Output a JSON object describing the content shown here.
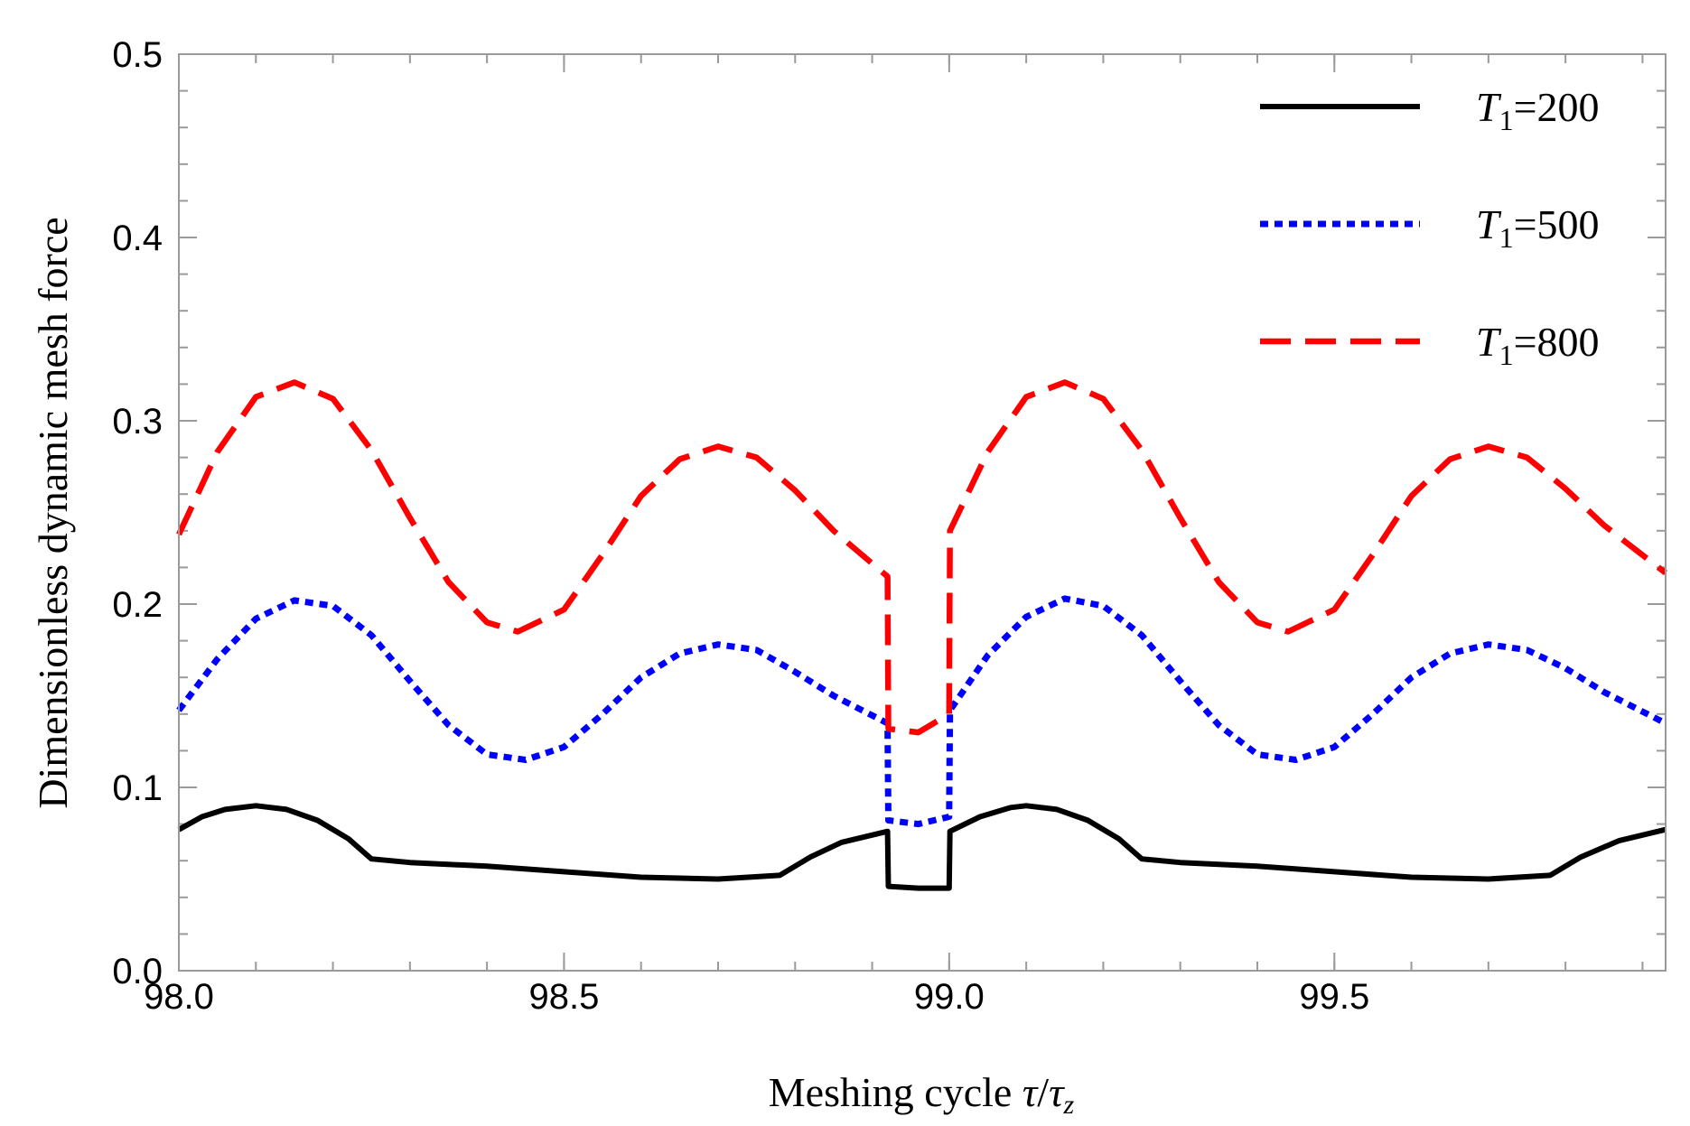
{
  "chart_data": {
    "type": "line",
    "title": "",
    "xlabel": "Meshing cycle τ/τz",
    "xlabel_parts": {
      "prefix": "Meshing cycle ",
      "tau": "τ",
      "slash": "/",
      "tau_z": "τ",
      "sub_z": "z"
    },
    "ylabel": "Dimensionless dynamic mesh force",
    "xlim": [
      98.0,
      99.93
    ],
    "ylim": [
      0.0,
      0.5
    ],
    "grid": false,
    "legend_position": "top-right",
    "x_major_ticks": [
      98.0,
      98.5,
      99.0,
      99.5
    ],
    "x_tick_labels": [
      "98.0",
      "98.5",
      "99.0",
      "99.5"
    ],
    "x_minor_step": 0.1,
    "y_major_ticks": [
      0.0,
      0.1,
      0.2,
      0.3,
      0.4,
      0.5
    ],
    "y_tick_labels": [
      "0.0",
      "0.1",
      "0.2",
      "0.3",
      "0.4",
      "0.5"
    ],
    "y_minor_step": 0.02,
    "series": [
      {
        "name": "T1=200",
        "legend": {
          "T": "T",
          "sub": "1",
          "value": "=200"
        },
        "color": "#000000",
        "style": "solid",
        "points": [
          [
            98.0,
            0.077
          ],
          [
            98.03,
            0.084
          ],
          [
            98.06,
            0.088
          ],
          [
            98.1,
            0.09
          ],
          [
            98.14,
            0.088
          ],
          [
            98.18,
            0.082
          ],
          [
            98.22,
            0.072
          ],
          [
            98.25,
            0.061
          ],
          [
            98.3,
            0.059
          ],
          [
            98.4,
            0.057
          ],
          [
            98.5,
            0.054
          ],
          [
            98.6,
            0.051
          ],
          [
            98.7,
            0.05
          ],
          [
            98.78,
            0.052
          ],
          [
            98.82,
            0.062
          ],
          [
            98.86,
            0.07
          ],
          [
            98.92,
            0.076
          ],
          [
            98.921,
            0.046
          ],
          [
            98.96,
            0.045
          ],
          [
            99.0,
            0.045
          ],
          [
            99.001,
            0.076
          ],
          [
            99.04,
            0.084
          ],
          [
            99.08,
            0.089
          ],
          [
            99.1,
            0.09
          ],
          [
            99.14,
            0.088
          ],
          [
            99.18,
            0.082
          ],
          [
            99.22,
            0.072
          ],
          [
            99.25,
            0.061
          ],
          [
            99.3,
            0.059
          ],
          [
            99.4,
            0.057
          ],
          [
            99.5,
            0.054
          ],
          [
            99.6,
            0.051
          ],
          [
            99.7,
            0.05
          ],
          [
            99.78,
            0.052
          ],
          [
            99.82,
            0.062
          ],
          [
            99.87,
            0.071
          ],
          [
            99.93,
            0.077
          ]
        ]
      },
      {
        "name": "T1=500",
        "legend": {
          "T": "T",
          "sub": "1",
          "value": "=500"
        },
        "color": "#0000ff",
        "style": "dotted",
        "points": [
          [
            98.0,
            0.142
          ],
          [
            98.05,
            0.17
          ],
          [
            98.1,
            0.192
          ],
          [
            98.15,
            0.202
          ],
          [
            98.2,
            0.199
          ],
          [
            98.25,
            0.183
          ],
          [
            98.3,
            0.158
          ],
          [
            98.35,
            0.134
          ],
          [
            98.4,
            0.118
          ],
          [
            98.45,
            0.115
          ],
          [
            98.5,
            0.122
          ],
          [
            98.55,
            0.14
          ],
          [
            98.6,
            0.16
          ],
          [
            98.65,
            0.173
          ],
          [
            98.7,
            0.178
          ],
          [
            98.75,
            0.175
          ],
          [
            98.8,
            0.163
          ],
          [
            98.85,
            0.15
          ],
          [
            98.92,
            0.135
          ],
          [
            98.921,
            0.082
          ],
          [
            98.96,
            0.08
          ],
          [
            99.0,
            0.084
          ],
          [
            99.001,
            0.142
          ],
          [
            99.05,
            0.172
          ],
          [
            99.1,
            0.193
          ],
          [
            99.15,
            0.203
          ],
          [
            99.2,
            0.199
          ],
          [
            99.25,
            0.183
          ],
          [
            99.3,
            0.158
          ],
          [
            99.35,
            0.134
          ],
          [
            99.4,
            0.118
          ],
          [
            99.45,
            0.115
          ],
          [
            99.5,
            0.122
          ],
          [
            99.55,
            0.14
          ],
          [
            99.6,
            0.16
          ],
          [
            99.65,
            0.173
          ],
          [
            99.7,
            0.178
          ],
          [
            99.75,
            0.175
          ],
          [
            99.8,
            0.165
          ],
          [
            99.85,
            0.152
          ],
          [
            99.93,
            0.135
          ]
        ]
      },
      {
        "name": "T1=800",
        "legend": {
          "T": "T",
          "sub": "1",
          "value": "=800"
        },
        "color": "#ff0000",
        "style": "dashed",
        "points": [
          [
            98.0,
            0.238
          ],
          [
            98.05,
            0.283
          ],
          [
            98.1,
            0.313
          ],
          [
            98.15,
            0.321
          ],
          [
            98.2,
            0.312
          ],
          [
            98.25,
            0.284
          ],
          [
            98.3,
            0.247
          ],
          [
            98.35,
            0.212
          ],
          [
            98.4,
            0.19
          ],
          [
            98.44,
            0.185
          ],
          [
            98.5,
            0.197
          ],
          [
            98.55,
            0.227
          ],
          [
            98.6,
            0.259
          ],
          [
            98.65,
            0.279
          ],
          [
            98.7,
            0.286
          ],
          [
            98.75,
            0.28
          ],
          [
            98.8,
            0.262
          ],
          [
            98.85,
            0.24
          ],
          [
            98.92,
            0.215
          ],
          [
            98.921,
            0.132
          ],
          [
            98.96,
            0.13
          ],
          [
            99.0,
            0.14
          ],
          [
            99.001,
            0.24
          ],
          [
            99.05,
            0.283
          ],
          [
            99.1,
            0.313
          ],
          [
            99.15,
            0.321
          ],
          [
            99.2,
            0.312
          ],
          [
            99.25,
            0.284
          ],
          [
            99.3,
            0.247
          ],
          [
            99.35,
            0.212
          ],
          [
            99.4,
            0.19
          ],
          [
            99.44,
            0.185
          ],
          [
            99.5,
            0.197
          ],
          [
            99.55,
            0.227
          ],
          [
            99.6,
            0.259
          ],
          [
            99.65,
            0.279
          ],
          [
            99.7,
            0.286
          ],
          [
            99.75,
            0.28
          ],
          [
            99.8,
            0.263
          ],
          [
            99.85,
            0.243
          ],
          [
            99.93,
            0.217
          ]
        ]
      }
    ]
  }
}
